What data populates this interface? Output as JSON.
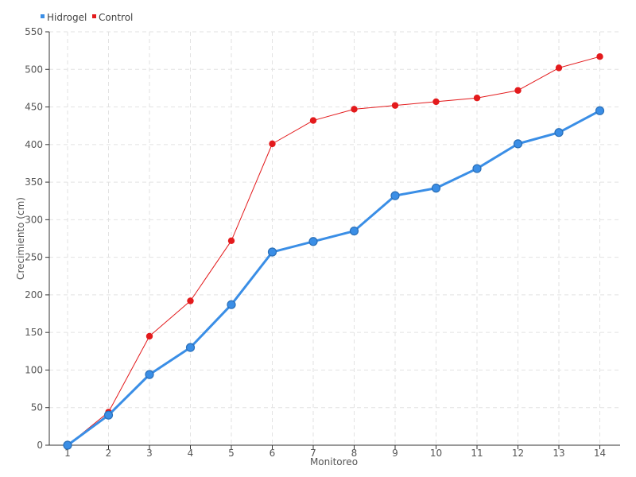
{
  "chart_data": {
    "type": "line",
    "categories": [
      "1",
      "2",
      "3",
      "4",
      "5",
      "6",
      "7",
      "8",
      "9",
      "10",
      "11",
      "12",
      "13",
      "14"
    ],
    "series": [
      {
        "name": "Hidrogel",
        "color": "#3a8ee6",
        "values": [
          0,
          40,
          94,
          130,
          187,
          257,
          271,
          285,
          332,
          342,
          368,
          401,
          416,
          445
        ]
      },
      {
        "name": "Control",
        "color": "#e31a1c",
        "values": [
          0,
          44,
          145,
          192,
          272,
          401,
          432,
          447,
          452,
          457,
          462,
          472,
          502,
          517
        ]
      }
    ],
    "title": "",
    "xlabel": "Monitoreo",
    "ylabel": "Crecimiento (cm)",
    "ylim": [
      0,
      550
    ],
    "yticks": [
      "0",
      "50",
      "100",
      "150",
      "200",
      "250",
      "300",
      "350",
      "400",
      "450",
      "500",
      "550"
    ],
    "grid": true,
    "legend_position": "top-left"
  }
}
